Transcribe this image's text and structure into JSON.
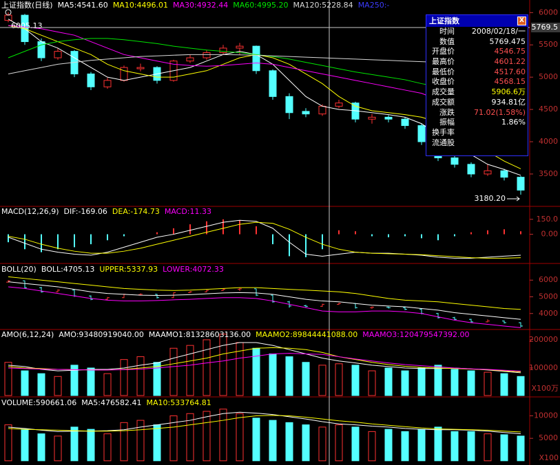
{
  "chart_data": [
    {
      "type": "candlestick",
      "title": "上证指数(日线)",
      "up_color": "#ff3232",
      "down_color": "#54ffff",
      "ohlc": {
        "open": [
          5880,
          5960,
          5550,
          5300,
          5400,
          5050,
          4850,
          4950,
          5130,
          5150,
          4950,
          5250,
          5300,
          5380,
          5450,
          5480,
          5100,
          4700,
          4470,
          4430,
          4550,
          4600,
          4350,
          4380,
          4350,
          4250,
          4000,
          3750,
          3650,
          3500,
          3550,
          3450
        ],
        "high": [
          6005.13,
          5980,
          5600,
          5450,
          5420,
          5080,
          4990,
          5180,
          5210,
          5170,
          5270,
          5350,
          5420,
          5500,
          5530,
          5490,
          5120,
          4750,
          4520,
          4580,
          4650,
          4620,
          4430,
          4410,
          4380,
          4280,
          4030,
          3800,
          3680,
          3650,
          3580,
          3470
        ],
        "low": [
          5850,
          5500,
          5250,
          5270,
          5000,
          4800,
          4820,
          4930,
          5090,
          4900,
          4930,
          5220,
          5270,
          5350,
          5350,
          5050,
          4650,
          4350,
          4380,
          4400,
          4520,
          4300,
          4280,
          4300,
          4200,
          3950,
          3700,
          3600,
          3450,
          3470,
          3400,
          3180.2
        ],
        "close": [
          5960,
          5550,
          5300,
          5400,
          5050,
          4850,
          4950,
          5150,
          5150,
          4950,
          5250,
          5300,
          5380,
          5450,
          5480,
          5100,
          4700,
          4450,
          4430,
          4550,
          4600,
          4350,
          4380,
          4350,
          4250,
          4000,
          3750,
          3650,
          3500,
          3550,
          3450,
          3250
        ]
      },
      "series": [
        {
          "name": "MA5:4541.60",
          "color": "#ffffff",
          "values": [
            5900,
            5750,
            5550,
            5450,
            5300,
            5150,
            5000,
            4950,
            5000,
            5050,
            5100,
            5150,
            5250,
            5350,
            5400,
            5350,
            5200,
            4950,
            4700,
            4550,
            4500,
            4480,
            4450,
            4420,
            4380,
            4280,
            4100,
            3950,
            3800,
            3650,
            3570,
            3480
          ]
        },
        {
          "name": "MA10:4496.01",
          "color": "#ffff00",
          "values": [
            5800,
            5750,
            5650,
            5550,
            5450,
            5350,
            5200,
            5100,
            5050,
            5000,
            5000,
            5050,
            5100,
            5200,
            5300,
            5350,
            5300,
            5200,
            5050,
            4900,
            4700,
            4550,
            4480,
            4450,
            4420,
            4380,
            4300,
            4150,
            4000,
            3850,
            3700,
            3580
          ]
        },
        {
          "name": "MA30:4932.44",
          "color": "#ff00ff",
          "values": [
            5800,
            5780,
            5750,
            5700,
            5650,
            5550,
            5450,
            5350,
            5300,
            5250,
            5200,
            5180,
            5170,
            5180,
            5200,
            5220,
            5200,
            5150,
            5100,
            5050,
            5000,
            4950,
            4900,
            4850,
            4800,
            4750,
            4650,
            4500,
            4350,
            4150,
            4000,
            3850
          ]
        },
        {
          "name": "MA60:4995.20",
          "color": "#00e600",
          "values": [
            5300,
            5400,
            5500,
            5550,
            5580,
            5600,
            5600,
            5580,
            5550,
            5520,
            5480,
            5450,
            5420,
            5400,
            5380,
            5350,
            5320,
            5280,
            5230,
            5180,
            5130,
            5080,
            5040,
            5000,
            4960,
            4900,
            4850,
            4780,
            4700,
            4600,
            4500,
            4400
          ]
        },
        {
          "name": "MA120:5228.84",
          "color": "#d8d8d8",
          "values": [
            5050,
            5100,
            5150,
            5200,
            5230,
            5260,
            5280,
            5300,
            5320,
            5330,
            5340,
            5350,
            5350,
            5350,
            5345,
            5340,
            5330,
            5320,
            5310,
            5300,
            5290,
            5280,
            5270,
            5260,
            5250,
            5240,
            5230,
            5220,
            5210,
            5200,
            5190,
            5180
          ]
        },
        {
          "name": "MA250:-",
          "color": "#3c3cff",
          "values": [
            null,
            null,
            null,
            null,
            null,
            null,
            null,
            null,
            null,
            null,
            null,
            null,
            null,
            null,
            null,
            null,
            null,
            null,
            null,
            null,
            null,
            null,
            null,
            null,
            null,
            null,
            null,
            null,
            null,
            null,
            null,
            null
          ]
        }
      ],
      "max_label": "6005.13",
      "min_label": "3180.20",
      "crosshair": 5769.5,
      "ylim": [
        3020,
        6110
      ],
      "yticks": [
        3500,
        4000,
        4500,
        5000,
        5500,
        6000
      ]
    },
    {
      "type": "macd",
      "title": "MACD(12,26,9)",
      "series": [
        {
          "name": "DIF:-169.06",
          "color": "#ffffff",
          "values": [
            -30,
            -90,
            -150,
            -180,
            -200,
            -210,
            -180,
            -130,
            -80,
            -30,
            0,
            40,
            80,
            120,
            140,
            130,
            60,
            -80,
            -200,
            -220,
            -200,
            -180,
            -190,
            -190,
            -200,
            -210,
            -230,
            -240,
            -240,
            -230,
            -220,
            -210
          ]
        },
        {
          "name": "DEA:-174.73",
          "color": "#ffff00",
          "values": [
            -20,
            -50,
            -100,
            -140,
            -170,
            -190,
            -190,
            -170,
            -140,
            -100,
            -60,
            -20,
            20,
            60,
            100,
            120,
            110,
            50,
            -30,
            -100,
            -150,
            -180,
            -190,
            -195,
            -200,
            -205,
            -215,
            -225,
            -235,
            -240,
            -240,
            -235
          ]
        },
        {
          "name": "MACD:11.33",
          "color": "#ff00ff",
          "style": "bar",
          "values": [
            -80,
            -150,
            -180,
            -150,
            -130,
            -100,
            -60,
            -20,
            0,
            20,
            60,
            100,
            130,
            150,
            140,
            80,
            -100,
            -220,
            -230,
            -150,
            40,
            30,
            -20,
            -30,
            -20,
            -40,
            -60,
            -20,
            20,
            40,
            50,
            30
          ]
        }
      ],
      "ylim": [
        -286,
        273
      ],
      "yticks": [
        {
          "value": 0,
          "label": "0.00"
        },
        {
          "value": 150,
          "label": "150.0"
        }
      ]
    },
    {
      "type": "boll",
      "title": "BOLL(20)",
      "series": [
        {
          "name": "BOLL:4705.13",
          "color": "#ffffff",
          "values": [
            5900,
            5800,
            5700,
            5600,
            5450,
            5300,
            5200,
            5150,
            5100,
            5080,
            5100,
            5130,
            5180,
            5230,
            5250,
            5230,
            5150,
            5000,
            4850,
            4750,
            4700,
            4600,
            4500,
            4450,
            4400,
            4300,
            4200,
            4050,
            3950,
            3850,
            3750,
            3650
          ]
        },
        {
          "name": "UPPER:5337.93",
          "color": "#ffff00",
          "values": [
            6200,
            6100,
            6000,
            5900,
            5800,
            5700,
            5600,
            5500,
            5450,
            5400,
            5380,
            5400,
            5450,
            5500,
            5550,
            5550,
            5500,
            5450,
            5400,
            5350,
            5300,
            5200,
            5050,
            4900,
            4800,
            4750,
            4700,
            4600,
            4500,
            4400,
            4300,
            4250
          ]
        },
        {
          "name": "LOWER:4072.33",
          "color": "#ff00ff",
          "values": [
            5600,
            5500,
            5350,
            5200,
            5050,
            4900,
            4800,
            4750,
            4750,
            4780,
            4820,
            4850,
            4900,
            4950,
            4950,
            4900,
            4750,
            4550,
            4350,
            4150,
            4100,
            4100,
            4150,
            4150,
            4100,
            4000,
            3800,
            3600,
            3450,
            3350,
            3250,
            3150
          ]
        }
      ],
      "ylim": [
        3083,
        6958
      ],
      "yticks": [
        4000,
        5000,
        6000
      ]
    },
    {
      "type": "bar",
      "title": "AMO(6,12,24)",
      "series": [
        {
          "name": "AMO:93480919040.00",
          "color": "#ffffff",
          "style": "bar",
          "values": [
            120000,
            90000,
            80000,
            70000,
            110000,
            100000,
            80000,
            130000,
            140000,
            120000,
            170000,
            180000,
            200000,
            220000,
            190000,
            170000,
            150000,
            140000,
            120000,
            110000,
            115000,
            110000,
            90000,
            100000,
            90000,
            100000,
            110000,
            95000,
            90000,
            85000,
            80000,
            70000
          ]
        },
        {
          "name": "MAAMO1:81328603136.00",
          "color": "#ffffff",
          "values": [
            110000,
            105000,
            95000,
            90000,
            92000,
            95000,
            95000,
            100000,
            110000,
            118000,
            135000,
            150000,
            165000,
            180000,
            190000,
            190000,
            180000,
            165000,
            150000,
            135000,
            125000,
            118000,
            110000,
            105000,
            100000,
            98000,
            98000,
            100000,
            97000,
            93000,
            88000,
            83000
          ]
        },
        {
          "name": "MAAMO2:89844441088.00",
          "color": "#ffff00",
          "values": [
            105000,
            100000,
            98000,
            95000,
            94000,
            93000,
            93000,
            95000,
            100000,
            105000,
            115000,
            125000,
            135000,
            150000,
            160000,
            170000,
            172000,
            170000,
            165000,
            155000,
            140000,
            130000,
            120000,
            112000,
            106000,
            102000,
            100000,
            98000,
            96000,
            94000,
            90000,
            86000
          ]
        },
        {
          "name": "MAAMO3:120479547392.00",
          "color": "#ff00ff",
          "values": [
            100000,
            98000,
            96000,
            95000,
            94000,
            93000,
            93000,
            94000,
            96000,
            100000,
            105000,
            110000,
            118000,
            125000,
            135000,
            142000,
            150000,
            152000,
            150000,
            148000,
            140000,
            132000,
            125000,
            118000,
            112000,
            108000,
            104000,
            100000,
            97000,
            95000,
            92000,
            89000
          ]
        }
      ],
      "unit": "X100万",
      "ylim": [
        2400,
        234000
      ],
      "yticks": [
        100000,
        200000
      ]
    },
    {
      "type": "bar",
      "series": [
        {
          "name": "VOLUME:590661.06",
          "color": "#ffffff",
          "style": "bar",
          "values": [
            8000,
            7000,
            6000,
            5500,
            7500,
            7000,
            6000,
            8500,
            9000,
            8000,
            10000,
            10500,
            11000,
            11500,
            10500,
            9500,
            9000,
            8500,
            8000,
            7500,
            8000,
            7500,
            6500,
            7000,
            6500,
            7000,
            7500,
            6500,
            6500,
            6000,
            5800,
            5500
          ]
        },
        {
          "name": "MA5:476582.41",
          "color": "#ffffff",
          "values": [
            7500,
            7200,
            6800,
            6500,
            6600,
            6600,
            6700,
            6900,
            7500,
            8000,
            8500,
            9000,
            9800,
            10500,
            10800,
            10600,
            10300,
            9800,
            9300,
            8700,
            8200,
            8000,
            7700,
            7500,
            7200,
            7000,
            6900,
            6900,
            6800,
            6600,
            6300,
            6000
          ]
        },
        {
          "name": "MA10:533764.81",
          "color": "#ffff00",
          "values": [
            7200,
            7000,
            6900,
            6800,
            6700,
            6600,
            6600,
            6700,
            6900,
            7200,
            7500,
            8000,
            8500,
            9000,
            9600,
            10000,
            10100,
            10000,
            9700,
            9300,
            8900,
            8600,
            8200,
            7900,
            7600,
            7300,
            7100,
            7000,
            6900,
            6800,
            6600,
            6400
          ]
        }
      ],
      "unit": "X100",
      "ylim": [
        -940,
        14060
      ],
      "yticks": [
        5000,
        10000
      ]
    }
  ],
  "info_box": {
    "title": "上证指数",
    "close": "X",
    "rows": [
      {
        "label": "时间",
        "value": "2008/02/18/一",
        "color": "#ffffff"
      },
      {
        "label": "数值",
        "value": "5769.475",
        "color": "#ffffff"
      },
      {
        "label": "开盘价",
        "value": "4546.75",
        "color": "#ff5050"
      },
      {
        "label": "最高价",
        "value": "4601.22",
        "color": "#ff5050"
      },
      {
        "label": "最低价",
        "value": "4517.60",
        "color": "#ff5050"
      },
      {
        "label": "收盘价",
        "value": "4568.15",
        "color": "#ff5050"
      },
      {
        "label": "成交量",
        "value": "5906.6万",
        "color": "#ffff00"
      },
      {
        "label": "成交额",
        "value": "934.81亿",
        "color": "#ffffff"
      },
      {
        "label": "涨跌",
        "value": "71.02(1.58%)",
        "color": "#ff5050"
      },
      {
        "label": "振幅",
        "value": "1.86%",
        "color": "#ffffff"
      },
      {
        "label": "换手率"
      },
      {
        "label": "流通股"
      }
    ]
  }
}
